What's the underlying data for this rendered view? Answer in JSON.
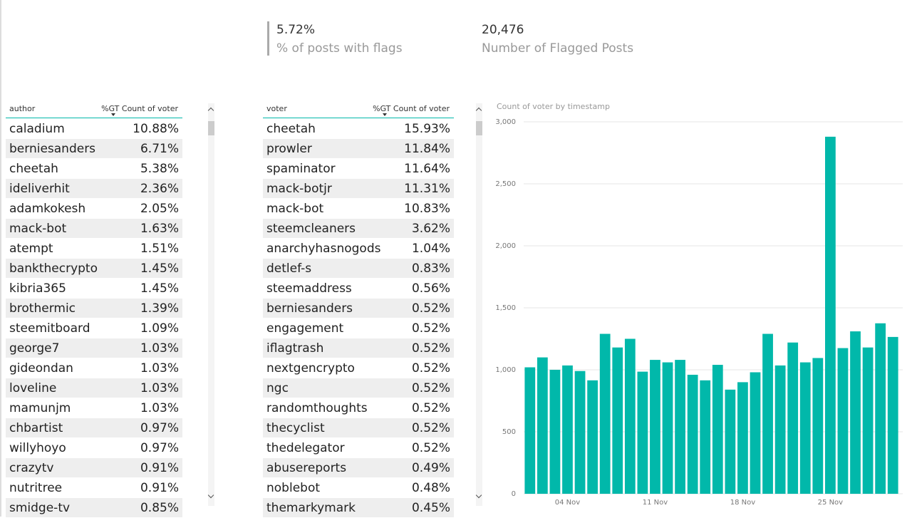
{
  "cards": [
    {
      "value": "5.72%",
      "label": "% of posts with flags"
    },
    {
      "value": "20,476",
      "label": "Number of Flagged Posts"
    }
  ],
  "tables": [
    {
      "columns": [
        "author",
        "%GT Count of voter"
      ],
      "rows": [
        [
          "caladium",
          "10.88%"
        ],
        [
          "berniesanders",
          "6.71%"
        ],
        [
          "cheetah",
          "5.38%"
        ],
        [
          "ideliverhit",
          "2.36%"
        ],
        [
          "adamkokesh",
          "2.05%"
        ],
        [
          "mack-bot",
          "1.63%"
        ],
        [
          "atempt",
          "1.51%"
        ],
        [
          "bankthecrypto",
          "1.45%"
        ],
        [
          "kibria365",
          "1.45%"
        ],
        [
          "brothermic",
          "1.39%"
        ],
        [
          "steemitboard",
          "1.09%"
        ],
        [
          "george7",
          "1.03%"
        ],
        [
          "gideondan",
          "1.03%"
        ],
        [
          "loveline",
          "1.03%"
        ],
        [
          "mamunjm",
          "1.03%"
        ],
        [
          "chbartist",
          "0.97%"
        ],
        [
          "willyhoyo",
          "0.97%"
        ],
        [
          "crazytv",
          "0.91%"
        ],
        [
          "nutritree",
          "0.91%"
        ],
        [
          "smidge-tv",
          "0.85%"
        ]
      ]
    },
    {
      "columns": [
        "voter",
        "%GT Count of voter"
      ],
      "rows": [
        [
          "cheetah",
          "15.93%"
        ],
        [
          "prowler",
          "11.84%"
        ],
        [
          "spaminator",
          "11.64%"
        ],
        [
          "mack-botjr",
          "11.31%"
        ],
        [
          "mack-bot",
          "10.83%"
        ],
        [
          "steemcleaners",
          "3.62%"
        ],
        [
          "anarchyhasnogods",
          "1.04%"
        ],
        [
          "detlef-s",
          "0.83%"
        ],
        [
          "steemaddress",
          "0.56%"
        ],
        [
          "berniesanders",
          "0.52%"
        ],
        [
          "engagement",
          "0.52%"
        ],
        [
          "iflagtrash",
          "0.52%"
        ],
        [
          "nextgencrypto",
          "0.52%"
        ],
        [
          "ngc",
          "0.52%"
        ],
        [
          "randomthoughts",
          "0.52%"
        ],
        [
          "thecyclist",
          "0.52%"
        ],
        [
          "thedelegator",
          "0.52%"
        ],
        [
          "abusereports",
          "0.49%"
        ],
        [
          "noblebot",
          "0.48%"
        ],
        [
          "themarkymark",
          "0.45%"
        ]
      ]
    }
  ],
  "chart_data": {
    "type": "bar",
    "title": "Count of voter by timestamp",
    "color": "#01b8aa",
    "grid": true,
    "categories": [
      null,
      null,
      null,
      "04 Nov",
      null,
      null,
      null,
      null,
      null,
      null,
      "11 Nov",
      null,
      null,
      null,
      null,
      null,
      null,
      "18 Nov",
      null,
      null,
      null,
      null,
      null,
      null,
      "25 Nov",
      null,
      null,
      null,
      null,
      null
    ],
    "values": [
      1020,
      1100,
      1000,
      1035,
      990,
      915,
      1290,
      1180,
      1250,
      985,
      1080,
      1060,
      1080,
      960,
      915,
      1040,
      840,
      900,
      980,
      1290,
      1035,
      1220,
      1060,
      1095,
      2880,
      1175,
      1310,
      1180,
      1375,
      1265
    ],
    "ylim": [
      0,
      3000
    ],
    "yticks": [
      0,
      500,
      {
        "value": 1000,
        "label": "1,000"
      },
      {
        "value": 1500,
        "label": "1,500"
      },
      {
        "value": 2000,
        "label": "2,000"
      },
      {
        "value": 2500,
        "label": "2,500"
      },
      {
        "value": 3000,
        "label": "3,000"
      }
    ]
  }
}
